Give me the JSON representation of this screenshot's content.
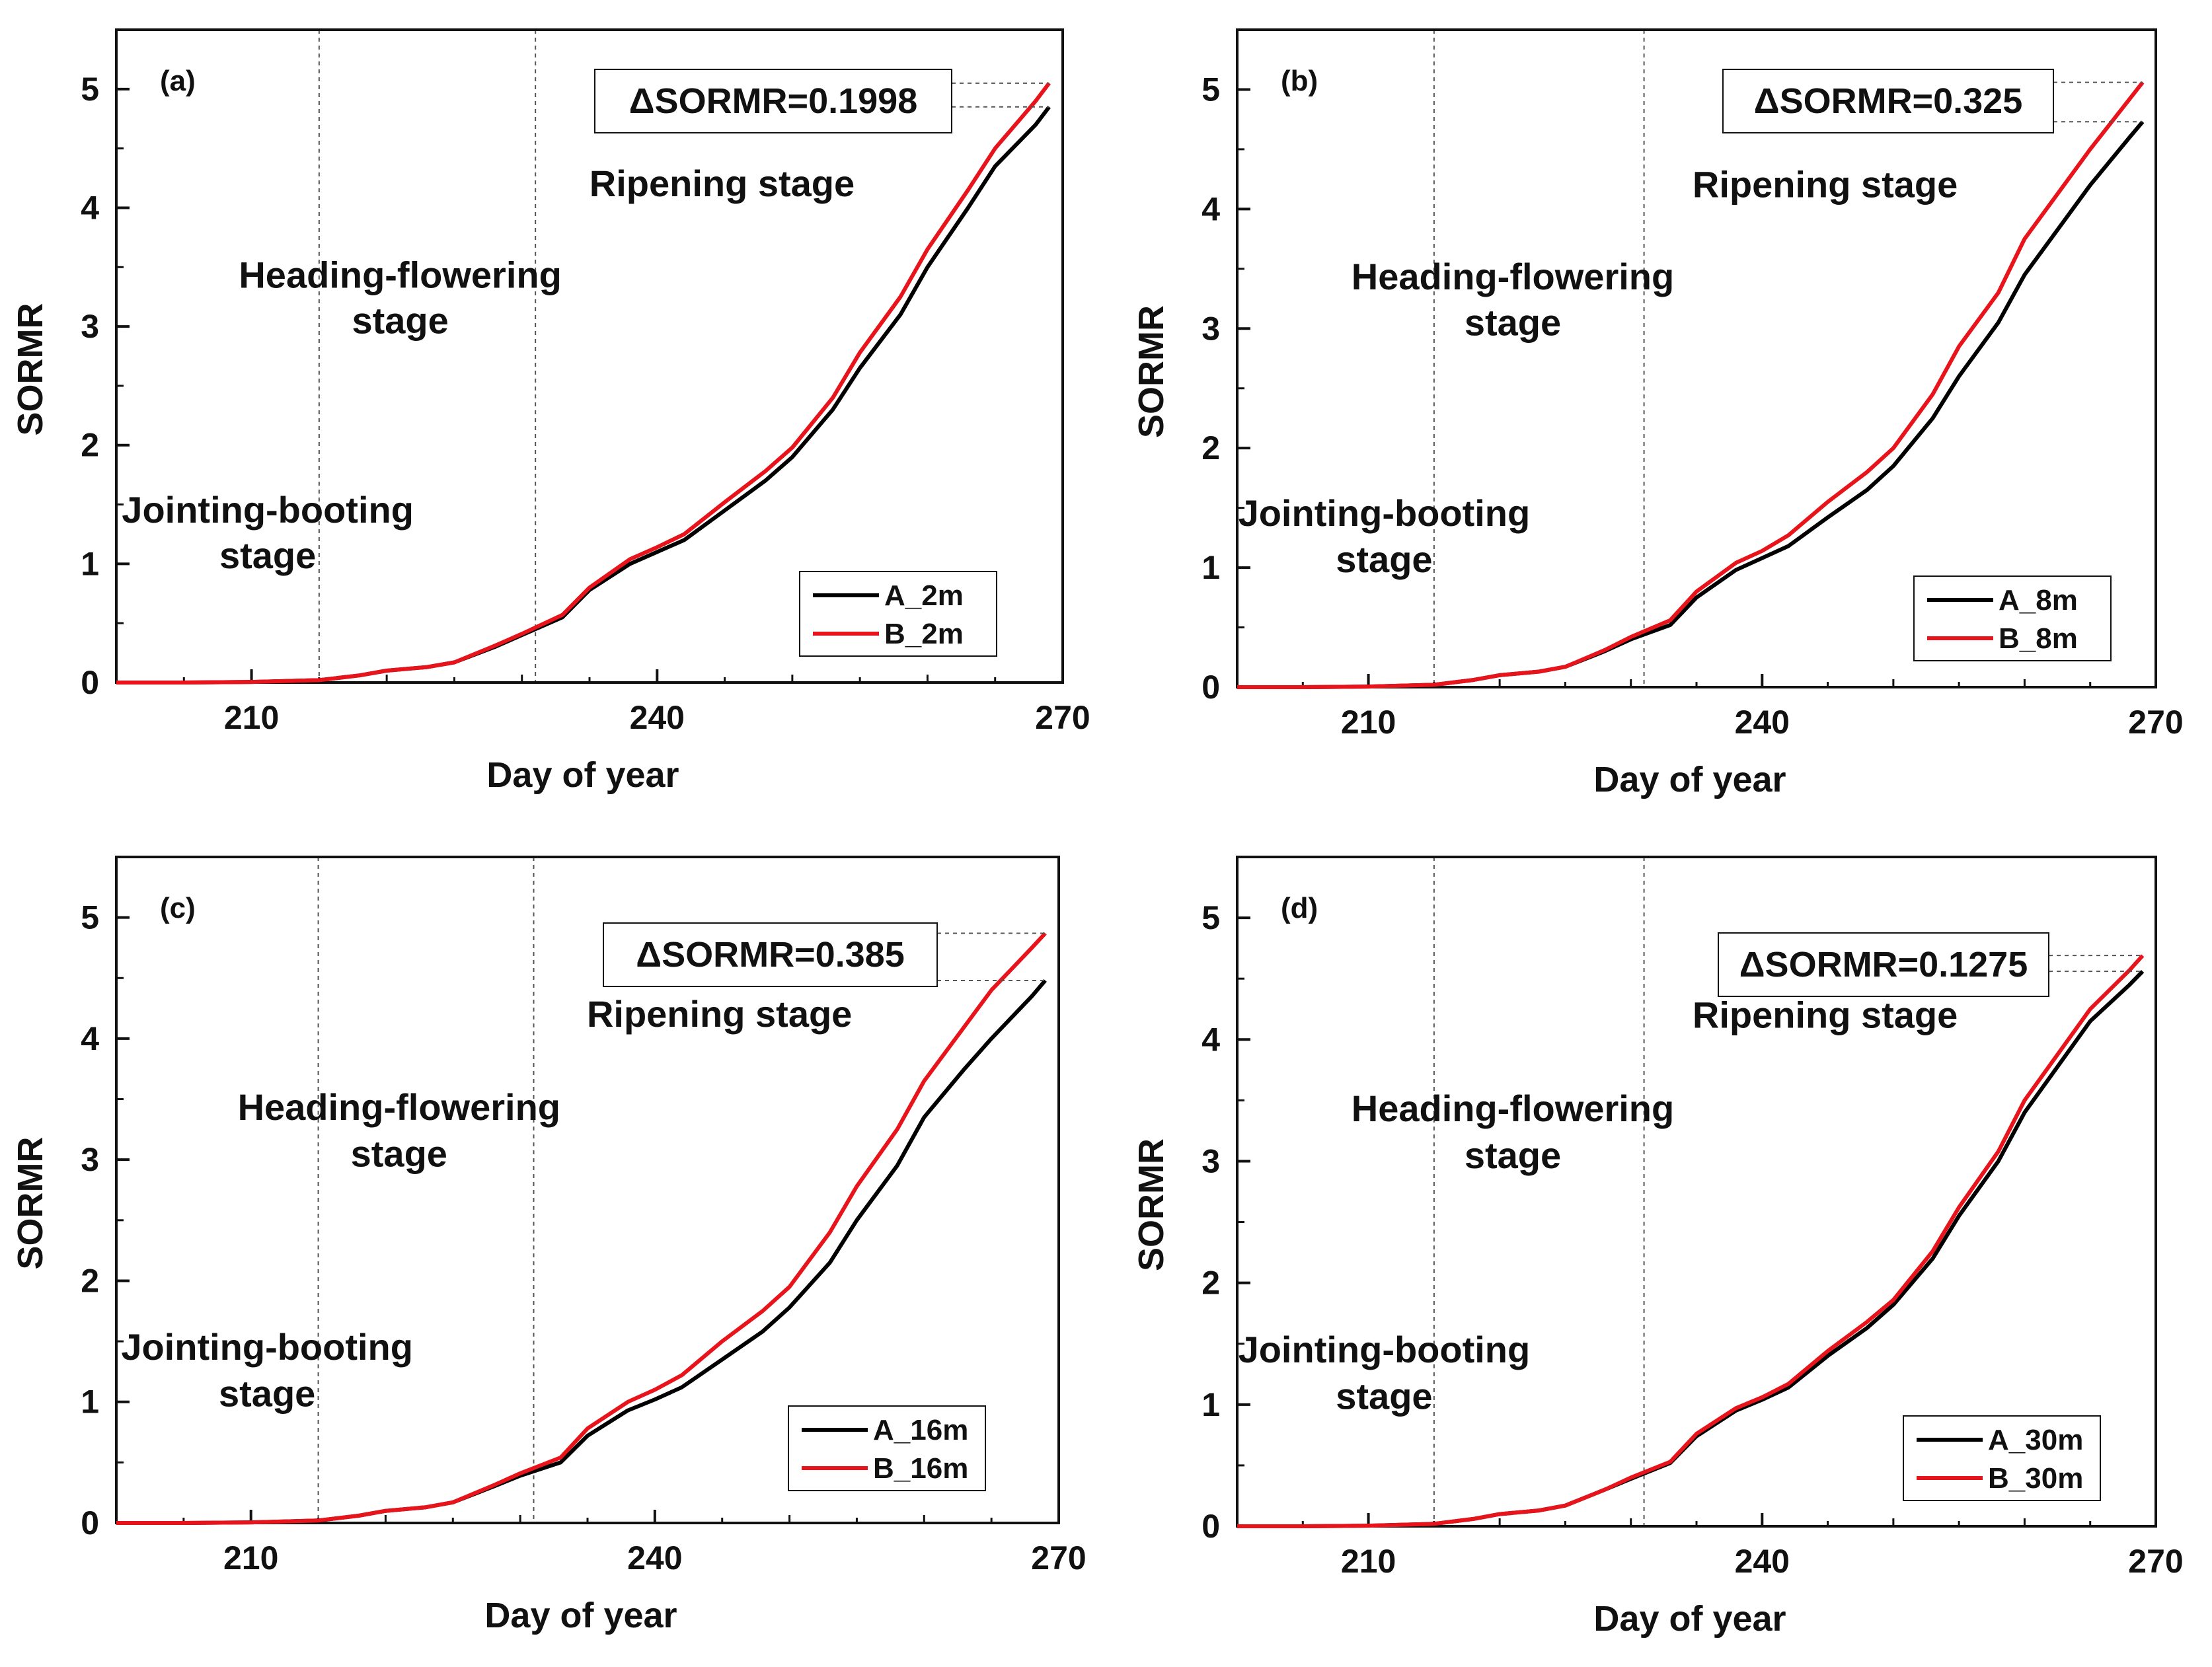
{
  "colors": {
    "series_a": "#000000",
    "series_b": "#e8141c",
    "axis": "#111111",
    "guide": "#555555"
  },
  "chart_data": [
    {
      "type": "line",
      "panel": "(a)",
      "xlabel": "Day of year",
      "ylabel": "SORMR",
      "xlim": [
        200,
        270
      ],
      "ylim": [
        0,
        5.5
      ],
      "xticks": [
        "210",
        "240",
        "270"
      ],
      "yticks": [
        "0",
        "1",
        "2",
        "3",
        "4",
        "5"
      ],
      "stage_boundaries": [
        215,
        231
      ],
      "stages": [
        "Jointing-booting",
        "stage",
        "Heading-flowering",
        "stage",
        "Ripening stage"
      ],
      "delta_label": "ΔSORMR=0.1998",
      "x": [
        200,
        205,
        210,
        215,
        218,
        220,
        223,
        225,
        228,
        230,
        233,
        235,
        238,
        240,
        242,
        245,
        248,
        250,
        253,
        255,
        258,
        260,
        263,
        265,
        268,
        269
      ],
      "series": [
        {
          "name": "A_2m",
          "values": [
            0,
            0,
            0.005,
            0.02,
            0.06,
            0.1,
            0.13,
            0.17,
            0.3,
            0.4,
            0.55,
            0.78,
            1.0,
            1.1,
            1.2,
            1.45,
            1.7,
            1.9,
            2.3,
            2.65,
            3.1,
            3.5,
            4.0,
            4.35,
            4.7,
            4.85
          ]
        },
        {
          "name": "B_2m",
          "values": [
            0,
            0,
            0.005,
            0.02,
            0.06,
            0.1,
            0.13,
            0.17,
            0.31,
            0.41,
            0.57,
            0.8,
            1.04,
            1.14,
            1.25,
            1.52,
            1.78,
            1.98,
            2.4,
            2.78,
            3.25,
            3.65,
            4.15,
            4.5,
            4.9,
            5.05
          ]
        }
      ]
    },
    {
      "type": "line",
      "panel": "(b)",
      "xlabel": "Day of year",
      "ylabel": "SORMR",
      "xlim": [
        200,
        270
      ],
      "ylim": [
        0,
        5.5
      ],
      "xticks": [
        "210",
        "240",
        "270"
      ],
      "yticks": [
        "0",
        "1",
        "2",
        "3",
        "4",
        "5"
      ],
      "stage_boundaries": [
        215,
        231
      ],
      "stages": [
        "Jointing-booting",
        "stage",
        "Heading-flowering",
        "stage",
        "Ripening stage"
      ],
      "delta_label": "ΔSORMR=0.325",
      "x": [
        200,
        205,
        210,
        215,
        218,
        220,
        223,
        225,
        228,
        230,
        233,
        235,
        238,
        240,
        242,
        245,
        248,
        250,
        253,
        255,
        258,
        260,
        263,
        265,
        268,
        269
      ],
      "series": [
        {
          "name": "A_8m",
          "values": [
            0,
            0,
            0.005,
            0.02,
            0.06,
            0.1,
            0.13,
            0.17,
            0.3,
            0.4,
            0.52,
            0.75,
            0.98,
            1.08,
            1.18,
            1.42,
            1.65,
            1.85,
            2.25,
            2.6,
            3.05,
            3.45,
            3.9,
            4.2,
            4.6,
            4.73
          ]
        },
        {
          "name": "B_8m",
          "values": [
            0,
            0,
            0.005,
            0.02,
            0.06,
            0.1,
            0.13,
            0.17,
            0.31,
            0.42,
            0.56,
            0.8,
            1.04,
            1.14,
            1.27,
            1.55,
            1.8,
            2.0,
            2.45,
            2.85,
            3.3,
            3.75,
            4.2,
            4.5,
            4.92,
            5.06
          ]
        }
      ]
    },
    {
      "type": "line",
      "panel": "(c)",
      "xlabel": "Day of year",
      "ylabel": "SORMR",
      "xlim": [
        200,
        270
      ],
      "ylim": [
        0,
        5.5
      ],
      "xticks": [
        "210",
        "240",
        "270"
      ],
      "yticks": [
        "0",
        "1",
        "2",
        "3",
        "4",
        "5"
      ],
      "stage_boundaries": [
        215,
        231
      ],
      "stages": [
        "Jointing-booting",
        "stage",
        "Heading-flowering",
        "stage",
        "Ripening stage"
      ],
      "delta_label": "ΔSORMR=0.385",
      "x": [
        200,
        205,
        210,
        215,
        218,
        220,
        223,
        225,
        228,
        230,
        233,
        235,
        238,
        240,
        242,
        245,
        248,
        250,
        253,
        255,
        258,
        260,
        263,
        265,
        268,
        269
      ],
      "series": [
        {
          "name": "A_16m",
          "values": [
            0,
            0,
            0.005,
            0.02,
            0.06,
            0.1,
            0.13,
            0.17,
            0.3,
            0.39,
            0.5,
            0.72,
            0.93,
            1.02,
            1.12,
            1.35,
            1.58,
            1.78,
            2.15,
            2.5,
            2.95,
            3.35,
            3.75,
            4.0,
            4.35,
            4.48
          ]
        },
        {
          "name": "B_16m",
          "values": [
            0,
            0,
            0.005,
            0.02,
            0.06,
            0.1,
            0.13,
            0.17,
            0.31,
            0.41,
            0.54,
            0.78,
            1.0,
            1.1,
            1.22,
            1.5,
            1.75,
            1.95,
            2.4,
            2.78,
            3.25,
            3.65,
            4.1,
            4.4,
            4.75,
            4.87
          ]
        }
      ]
    },
    {
      "type": "line",
      "panel": "(d)",
      "xlabel": "Day of year",
      "ylabel": "SORMR",
      "xlim": [
        200,
        270
      ],
      "ylim": [
        0,
        5.5
      ],
      "xticks": [
        "210",
        "240",
        "270"
      ],
      "yticks": [
        "0",
        "1",
        "2",
        "3",
        "4",
        "5"
      ],
      "stage_boundaries": [
        215,
        231
      ],
      "stages": [
        "Jointing-booting",
        "stage",
        "Heading-flowering",
        "stage",
        "Ripening stage"
      ],
      "delta_label": "ΔSORMR=0.1275",
      "x": [
        200,
        205,
        210,
        215,
        218,
        220,
        223,
        225,
        228,
        230,
        233,
        235,
        238,
        240,
        242,
        245,
        248,
        250,
        253,
        255,
        258,
        260,
        263,
        265,
        268,
        269
      ],
      "series": [
        {
          "name": "A_30m",
          "values": [
            0,
            0,
            0.005,
            0.02,
            0.06,
            0.1,
            0.13,
            0.17,
            0.3,
            0.39,
            0.52,
            0.74,
            0.95,
            1.04,
            1.14,
            1.4,
            1.63,
            1.82,
            2.2,
            2.55,
            3.0,
            3.4,
            3.85,
            4.15,
            4.45,
            4.56
          ]
        },
        {
          "name": "B_30m",
          "values": [
            0,
            0,
            0.005,
            0.02,
            0.06,
            0.1,
            0.13,
            0.17,
            0.3,
            0.4,
            0.53,
            0.76,
            0.97,
            1.06,
            1.17,
            1.44,
            1.68,
            1.86,
            2.26,
            2.62,
            3.08,
            3.5,
            3.95,
            4.25,
            4.57,
            4.69
          ]
        }
      ]
    }
  ]
}
